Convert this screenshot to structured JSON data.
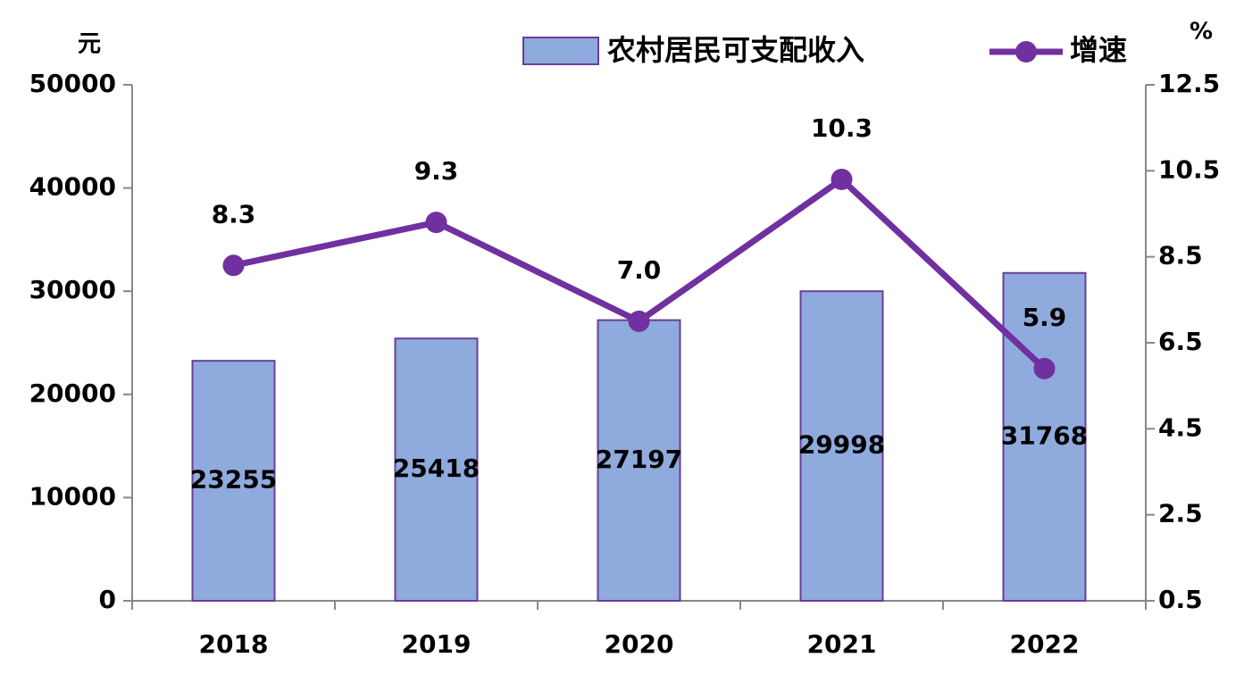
{
  "chart_data": {
    "type": "bar",
    "categories": [
      "2018",
      "2019",
      "2020",
      "2021",
      "2022"
    ],
    "series": [
      {
        "name": "农村居民可支配收入",
        "type": "bar",
        "color": "#8faadc",
        "edge_color": "#6a3d9a",
        "values": [
          23255,
          25418,
          27197,
          29998,
          31768
        ]
      },
      {
        "name": "增速",
        "type": "line",
        "axis": "y2",
        "color": "#7030a0",
        "values": [
          8.3,
          9.3,
          7.0,
          10.3,
          5.9
        ],
        "value_labels": [
          "8.3",
          "9.3",
          "7.0",
          "10.3",
          "5.9"
        ]
      }
    ],
    "y_label": "元",
    "y2_label": "%",
    "ylim": [
      0,
      50000
    ],
    "yticks": [
      0,
      10000,
      20000,
      30000,
      40000,
      50000
    ],
    "y2lim": [
      0.5,
      12.5
    ],
    "y2ticks": [
      0.5,
      2.5,
      4.5,
      6.5,
      8.5,
      10.5,
      12.5
    ],
    "grid": false,
    "legend": "top"
  }
}
